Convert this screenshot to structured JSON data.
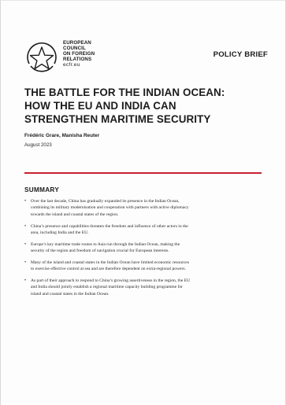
{
  "header": {
    "org_lines": [
      "EUROPEAN",
      "COUNCIL",
      "ON FOREIGN",
      "RELATIONS"
    ],
    "org_site": "ecfr.eu",
    "doc_type": "POLICY BRIEF"
  },
  "title_lines": [
    "THE BATTLE FOR THE INDIAN OCEAN:",
    "HOW THE EU AND INDIA CAN",
    "STRENGTHEN MARITIME SECURITY"
  ],
  "authors": "Frédéric Grare, Manisha Reuter",
  "date": "August 2023",
  "summary": {
    "heading": "SUMMARY",
    "bullet_glyph": "•",
    "bullets": [
      [
        "Over the last decade, China has gradually expanded its presence in the Indian Ocean,",
        "combining its military modernisation and cooperation with partners with active diplomacy",
        "towards the island and coastal states of the region."
      ],
      [
        "China’s presence and capabilities threaten the freedom and influence of other actors in the",
        "area, including India and the EU."
      ],
      [
        "Europe’s key maritime trade routes to Asia run through the Indian Ocean, making the",
        "security of the region and freedom of navigation crucial for European interests."
      ],
      [
        "Many of the island and coastal states in the Indian Ocean have limited economic resources",
        "to exercise effective control at sea and are therefore dependent on extra-regional powers."
      ],
      [
        "As part of their approach to respond to China’s growing assertiveness in the region, the EU",
        "and India should jointly establish a regional maritime capacity building programme for",
        "island and coastal states in the Indian Ocean."
      ]
    ]
  },
  "colors": {
    "accent_rule": "#c8202f",
    "text": "#1c1c1c"
  }
}
